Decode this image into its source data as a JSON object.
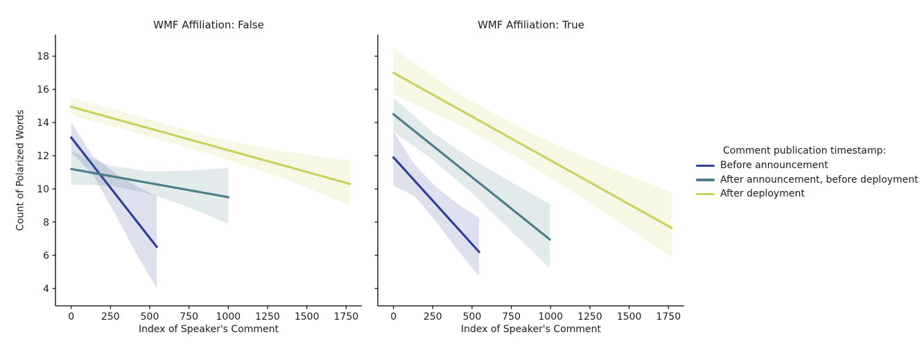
{
  "chart_data": {
    "type": "line",
    "xlabel": "Index of Speaker's Comment",
    "ylabel": "Count of Polarized Words",
    "xticks": [
      0,
      250,
      500,
      750,
      1000,
      1250,
      1500,
      1750
    ],
    "yticks": [
      4,
      6,
      8,
      10,
      12,
      14,
      16,
      18
    ],
    "xlim": [
      -100,
      1850
    ],
    "ylim": [
      2.95,
      19.3
    ],
    "grid": false,
    "band_alpha": 0.16,
    "legend": {
      "title": "Comment publication timestamp:",
      "position": "right"
    },
    "series": [
      {
        "name": "Before announcement",
        "color": "#2f3e96"
      },
      {
        "name": "After announcement, before deployment",
        "color": "#4d7d87"
      },
      {
        "name": "After deployment",
        "color": "#c5d35f"
      }
    ],
    "facets": [
      {
        "title": "WMF Affiliation: False",
        "lines": [
          {
            "series": 0,
            "x": [
              0,
              545
            ],
            "y": [
              13.1,
              6.5
            ],
            "band": {
              "x": [
                0,
                136,
                273,
                409,
                545
              ],
              "top": [
                14.05,
                12.0,
                11.0,
                10.2,
                9.55
              ],
              "bottom": [
                12.2,
                10.9,
                8.6,
                6.2,
                4.0
              ]
            }
          },
          {
            "series": 1,
            "x": [
              0,
              1000
            ],
            "y": [
              11.2,
              9.5
            ],
            "band": {
              "x": [
                0,
                250,
                500,
                750,
                1000
              ],
              "top": [
                12.25,
                11.4,
                11.05,
                11.1,
                11.25
              ],
              "bottom": [
                10.25,
                10.2,
                9.7,
                8.9,
                7.9
              ]
            }
          },
          {
            "series": 2,
            "x": [
              0,
              1775
            ],
            "y": [
              14.95,
              10.3
            ],
            "band": {
              "x": [
                0,
                440,
                880,
                1320,
                1775
              ],
              "top": [
                15.5,
                14.35,
                13.15,
                12.3,
                11.7
              ],
              "bottom": [
                14.45,
                13.3,
                12.1,
                10.75,
                9.0
              ]
            }
          }
        ]
      },
      {
        "title": "WMF Affiliation: True",
        "lines": [
          {
            "series": 0,
            "x": [
              0,
              545
            ],
            "y": [
              11.9,
              6.2
            ],
            "band": {
              "x": [
                0,
                136,
                273,
                409,
                545
              ],
              "top": [
                13.45,
                11.45,
                10.1,
                9.1,
                8.25
              ],
              "bottom": [
                10.2,
                9.55,
                8.0,
                6.3,
                4.75
              ]
            }
          },
          {
            "series": 1,
            "x": [
              0,
              995
            ],
            "y": [
              14.5,
              6.95
            ],
            "band": {
              "x": [
                0,
                250,
                500,
                750,
                995
              ],
              "top": [
                15.5,
                13.4,
                11.8,
                10.4,
                9.1
              ],
              "bottom": [
                13.45,
                11.75,
                9.75,
                7.45,
                5.2
              ]
            }
          },
          {
            "series": 2,
            "x": [
              0,
              1770
            ],
            "y": [
              17.0,
              7.65
            ],
            "band": {
              "x": [
                0,
                440,
                885,
                1330,
                1770
              ],
              "top": [
                18.45,
                15.6,
                13.3,
                11.45,
                9.8
              ],
              "bottom": [
                15.7,
                13.75,
                11.35,
                8.65,
                5.9
              ]
            }
          }
        ]
      }
    ]
  }
}
